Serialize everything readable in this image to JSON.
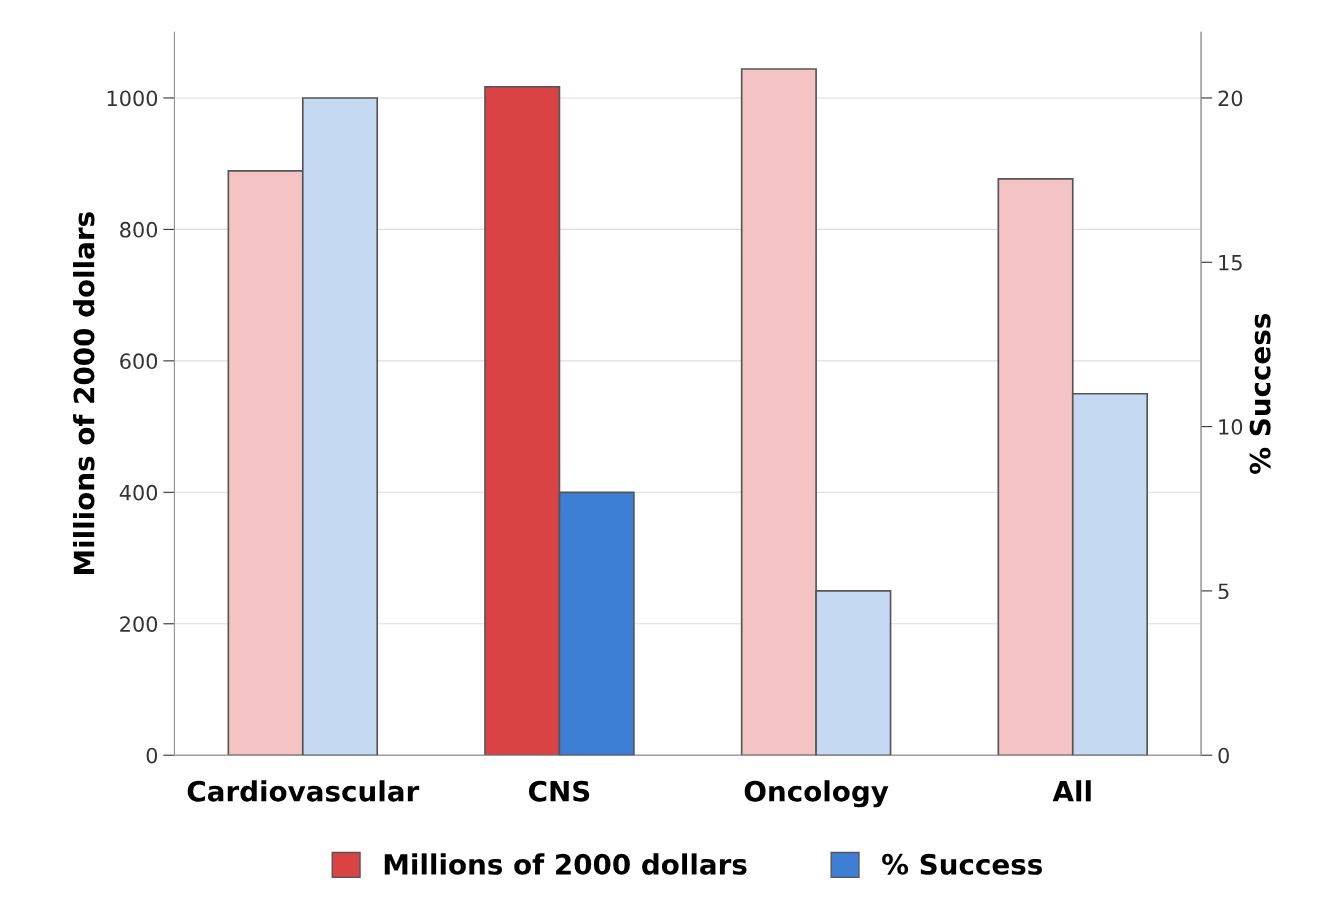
{
  "chart_data": {
    "type": "bar",
    "ylabel": "Millions of 2000 dollars",
    "y2label": "% Success",
    "categories": [
      "Cardiovascular",
      "CNS",
      "Oncology",
      "All"
    ],
    "series": [
      {
        "name": "Millions of 2000 dollars",
        "color": "#d94343",
        "colors": [
          "#f4c4c4",
          "#d94343",
          "#f4c4c4",
          "#f4c4c4"
        ],
        "values": [
          889,
          1017,
          1044,
          877
        ]
      },
      {
        "name": "% Success",
        "color": "#3d7fd4",
        "colors": [
          "#c5daf2",
          "#3d7fd4",
          "#c5daf2",
          "#c5daf2"
        ],
        "values": [
          20,
          8,
          5,
          11
        ],
        "axis": "y2"
      }
    ],
    "ylim": [
      0,
      1100
    ],
    "yticks": [
      0,
      200,
      400,
      600,
      800,
      1000
    ],
    "y2lim": [
      0,
      22
    ],
    "y2ticks": [
      0,
      5,
      10,
      15,
      20
    ],
    "grid": "y",
    "legend": "bottom"
  }
}
